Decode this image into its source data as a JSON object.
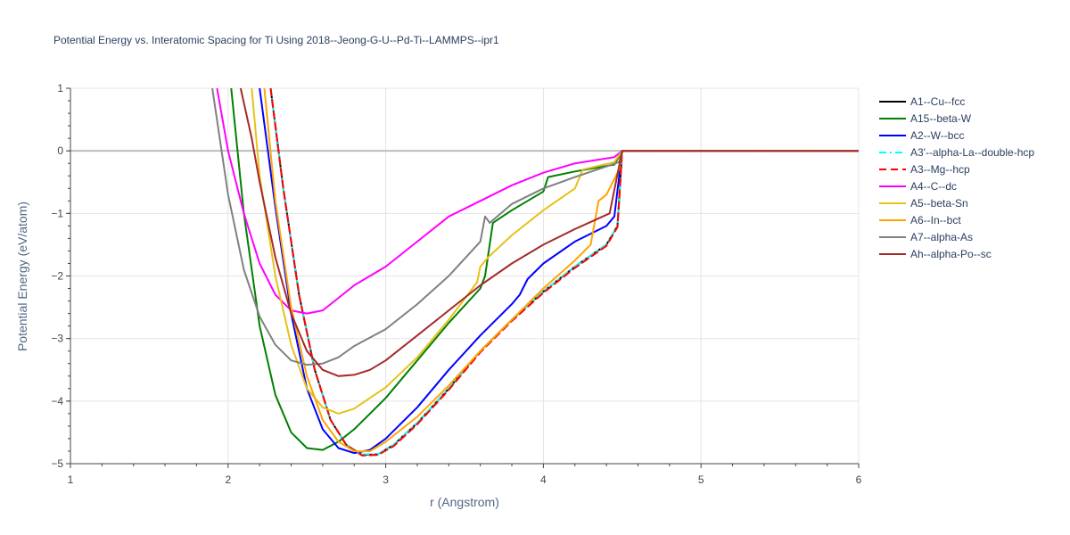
{
  "title": "Potential Energy vs. Interatomic Spacing for Ti Using 2018--Jeong-G-U--Pd-Ti--LAMMPS--ipr1",
  "chart_data": {
    "type": "line",
    "title": "Potential Energy vs. Interatomic Spacing for Ti Using 2018--Jeong-G-U--Pd-Ti--LAMMPS--ipr1",
    "xlabel": "r (Angstrom)",
    "ylabel": "Potential Energy (eV/atom)",
    "xlim": [
      1,
      6
    ],
    "ylim": [
      -5,
      1
    ],
    "xticks": [
      1,
      2,
      3,
      4,
      5,
      6
    ],
    "yticks": [
      1,
      0,
      -1,
      -2,
      -3,
      -4,
      -5
    ],
    "ytick_labels": [
      "1",
      "0",
      "−1",
      "−2",
      "−3",
      "−4",
      "−5"
    ],
    "grid": true,
    "legend_position": "right",
    "series": [
      {
        "name": "A1--Cu--fcc",
        "color": "#000000",
        "dash": "solid",
        "x": [
          2.27,
          2.35,
          2.45,
          2.55,
          2.65,
          2.75,
          2.85,
          2.95,
          3.05,
          3.2,
          3.4,
          3.6,
          3.8,
          4.0,
          4.2,
          4.4,
          4.47,
          4.5,
          6.0
        ],
        "y": [
          1.0,
          -0.6,
          -2.3,
          -3.5,
          -4.3,
          -4.7,
          -4.86,
          -4.85,
          -4.7,
          -4.35,
          -3.8,
          -3.2,
          -2.7,
          -2.25,
          -1.85,
          -1.5,
          -1.2,
          0,
          0
        ]
      },
      {
        "name": "A15--beta-W",
        "color": "#008000",
        "dash": "solid",
        "x": [
          2.02,
          2.1,
          2.2,
          2.3,
          2.4,
          2.5,
          2.6,
          2.7,
          2.8,
          2.9,
          3.0,
          3.2,
          3.4,
          3.6,
          3.63,
          3.68,
          3.8,
          4.0,
          4.03,
          4.2,
          4.45,
          4.5,
          6.0
        ],
        "y": [
          1.0,
          -1.0,
          -2.8,
          -3.9,
          -4.5,
          -4.75,
          -4.78,
          -4.65,
          -4.45,
          -4.2,
          -3.95,
          -3.35,
          -2.75,
          -2.2,
          -2.0,
          -1.15,
          -0.95,
          -0.65,
          -0.42,
          -0.33,
          -0.22,
          0,
          0
        ]
      },
      {
        "name": "A2--W--bcc",
        "color": "#0000ff",
        "dash": "solid",
        "x": [
          2.2,
          2.3,
          2.4,
          2.5,
          2.6,
          2.7,
          2.8,
          2.9,
          3.0,
          3.2,
          3.4,
          3.6,
          3.8,
          3.85,
          3.9,
          4.0,
          4.2,
          4.4,
          4.45,
          4.5,
          6.0
        ],
        "y": [
          1.0,
          -0.9,
          -2.6,
          -3.8,
          -4.45,
          -4.75,
          -4.83,
          -4.78,
          -4.6,
          -4.1,
          -3.5,
          -2.95,
          -2.45,
          -2.3,
          -2.05,
          -1.8,
          -1.45,
          -1.2,
          -1.05,
          0,
          0
        ]
      },
      {
        "name": "A3'--alpha-La--double-hcp",
        "color": "#00ffff",
        "dash": "dashdot",
        "x": [
          2.27,
          2.35,
          2.45,
          2.55,
          2.65,
          2.75,
          2.85,
          2.95,
          3.05,
          3.2,
          3.4,
          3.6,
          3.8,
          4.0,
          4.2,
          4.4,
          4.47,
          4.5,
          6.0
        ],
        "y": [
          1.0,
          -0.6,
          -2.3,
          -3.5,
          -4.3,
          -4.7,
          -4.85,
          -4.85,
          -4.7,
          -4.35,
          -3.8,
          -3.2,
          -2.7,
          -2.25,
          -1.85,
          -1.5,
          -1.2,
          0,
          0
        ]
      },
      {
        "name": "A3--Mg--hcp",
        "color": "#ff0000",
        "dash": "dash",
        "x": [
          2.27,
          2.35,
          2.45,
          2.55,
          2.65,
          2.75,
          2.85,
          2.95,
          3.05,
          3.2,
          3.4,
          3.6,
          3.8,
          4.0,
          4.2,
          4.4,
          4.47,
          4.5,
          6.0
        ],
        "y": [
          1.0,
          -0.6,
          -2.3,
          -3.5,
          -4.3,
          -4.7,
          -4.87,
          -4.86,
          -4.72,
          -4.37,
          -3.82,
          -3.22,
          -2.72,
          -2.27,
          -1.87,
          -1.52,
          -1.22,
          0,
          0
        ]
      },
      {
        "name": "A4--C--dc",
        "color": "#ff00ff",
        "dash": "solid",
        "x": [
          1.93,
          2.0,
          2.1,
          2.2,
          2.3,
          2.4,
          2.5,
          2.6,
          2.7,
          2.8,
          3.0,
          3.2,
          3.4,
          3.6,
          3.8,
          4.0,
          4.2,
          4.45,
          4.5,
          6.0
        ],
        "y": [
          1.0,
          0.0,
          -1.0,
          -1.8,
          -2.3,
          -2.55,
          -2.6,
          -2.55,
          -2.35,
          -2.15,
          -1.85,
          -1.45,
          -1.05,
          -0.8,
          -0.55,
          -0.35,
          -0.2,
          -0.1,
          0,
          0
        ]
      },
      {
        "name": "A5--beta-Sn",
        "color": "#e6c21a",
        "dash": "solid",
        "x": [
          2.15,
          2.2,
          2.3,
          2.4,
          2.5,
          2.6,
          2.7,
          2.8,
          2.9,
          3.0,
          3.2,
          3.4,
          3.58,
          3.6,
          3.65,
          3.8,
          4.0,
          4.2,
          4.25,
          4.45,
          4.5,
          6.0
        ],
        "y": [
          1.0,
          -0.4,
          -2.0,
          -3.1,
          -3.8,
          -4.1,
          -4.2,
          -4.12,
          -3.95,
          -3.78,
          -3.3,
          -2.7,
          -2.1,
          -1.85,
          -1.7,
          -1.35,
          -0.95,
          -0.6,
          -0.3,
          -0.18,
          0,
          0
        ]
      },
      {
        "name": "A6--In--bct",
        "color": "#ffa500",
        "dash": "solid",
        "x": [
          2.23,
          2.3,
          2.4,
          2.5,
          2.6,
          2.7,
          2.8,
          2.9,
          3.0,
          3.2,
          3.4,
          3.6,
          3.8,
          4.0,
          4.2,
          4.3,
          4.35,
          4.4,
          4.48,
          4.5,
          6.0
        ],
        "y": [
          1.0,
          -0.8,
          -2.5,
          -3.6,
          -4.3,
          -4.65,
          -4.8,
          -4.8,
          -4.65,
          -4.25,
          -3.75,
          -3.2,
          -2.7,
          -2.2,
          -1.75,
          -1.5,
          -0.8,
          -0.7,
          -0.3,
          0,
          0
        ]
      },
      {
        "name": "A7--alpha-As",
        "color": "#808080",
        "dash": "solid",
        "x": [
          1.9,
          2.0,
          2.1,
          2.2,
          2.3,
          2.4,
          2.5,
          2.6,
          2.7,
          2.8,
          3.0,
          3.2,
          3.4,
          3.6,
          3.63,
          3.66,
          3.8,
          4.0,
          4.2,
          4.4,
          4.48,
          4.5,
          6.0
        ],
        "y": [
          1.0,
          -0.7,
          -1.9,
          -2.65,
          -3.1,
          -3.35,
          -3.42,
          -3.4,
          -3.3,
          -3.12,
          -2.85,
          -2.45,
          -2.0,
          -1.45,
          -1.05,
          -1.15,
          -0.85,
          -0.6,
          -0.42,
          -0.25,
          -0.18,
          0,
          0
        ]
      },
      {
        "name": "Ah--alpha-Po--sc",
        "color": "#a52a2a",
        "dash": "solid",
        "x": [
          2.08,
          2.15,
          2.2,
          2.3,
          2.4,
          2.5,
          2.6,
          2.7,
          2.8,
          2.9,
          3.0,
          3.2,
          3.4,
          3.6,
          3.8,
          4.0,
          4.2,
          4.42,
          4.5,
          6.0
        ],
        "y": [
          1.0,
          0.2,
          -0.5,
          -1.7,
          -2.6,
          -3.2,
          -3.5,
          -3.6,
          -3.58,
          -3.5,
          -3.35,
          -2.95,
          -2.55,
          -2.15,
          -1.8,
          -1.5,
          -1.25,
          -1.0,
          0,
          0
        ]
      }
    ]
  }
}
